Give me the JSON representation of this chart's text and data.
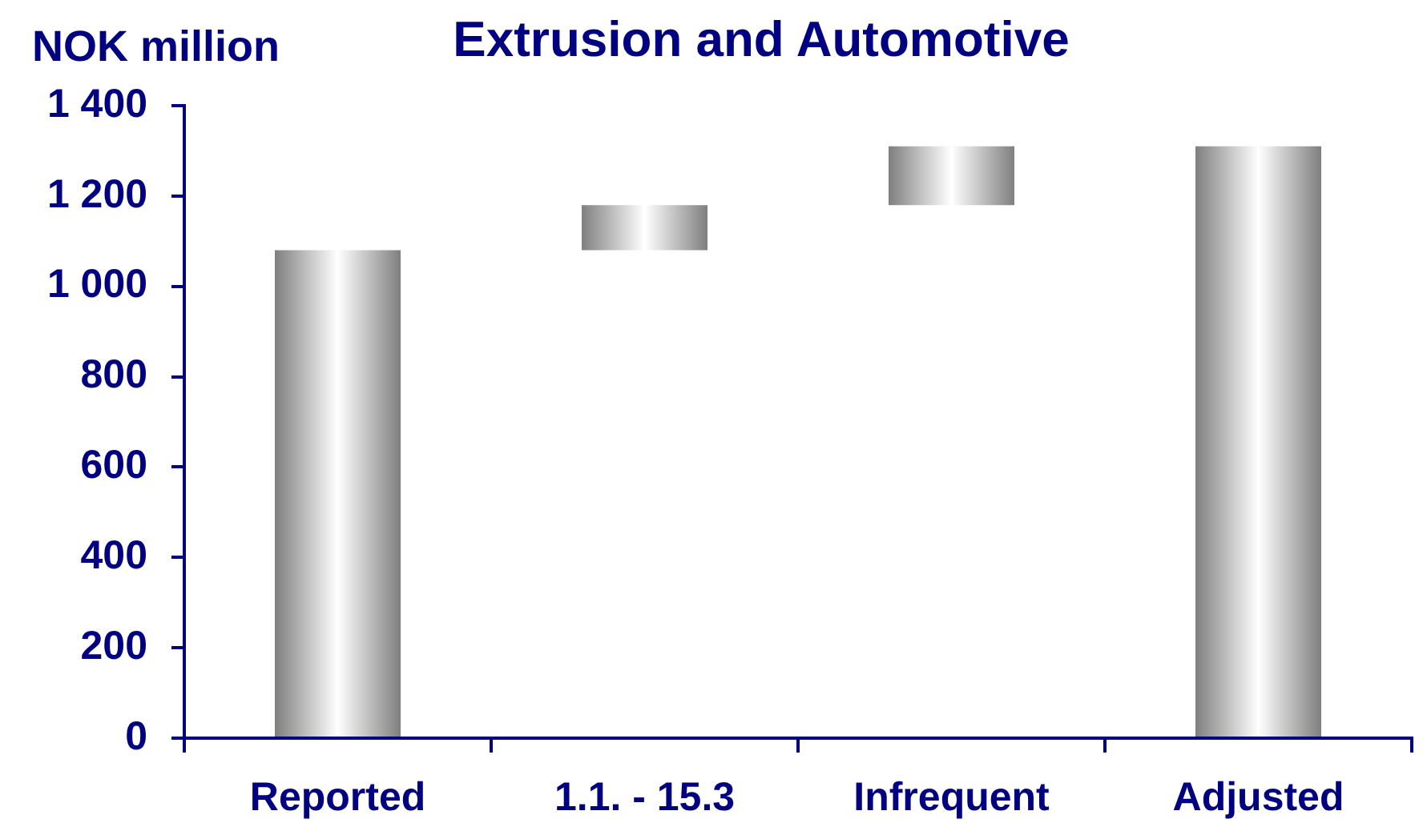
{
  "chart_data": {
    "type": "bar",
    "title": "Extrusion and Automotive",
    "ylabel": "NOK million",
    "categories": [
      "Reported",
      "1.1. - 15.3",
      "Infrequent",
      "Adjusted"
    ],
    "values": [
      1080,
      100,
      130,
      1310
    ],
    "base": [
      0,
      1080,
      1180,
      0
    ],
    "color": "#7f7f7f",
    "ylim": [
      0,
      1400
    ],
    "yticks": [
      0,
      200,
      400,
      600,
      800,
      {
        "value": 1000,
        "label": "1 000"
      },
      {
        "value": 1200,
        "label": "1 200"
      },
      {
        "value": 1400,
        "label": "1 400"
      }
    ],
    "grid": false
  }
}
